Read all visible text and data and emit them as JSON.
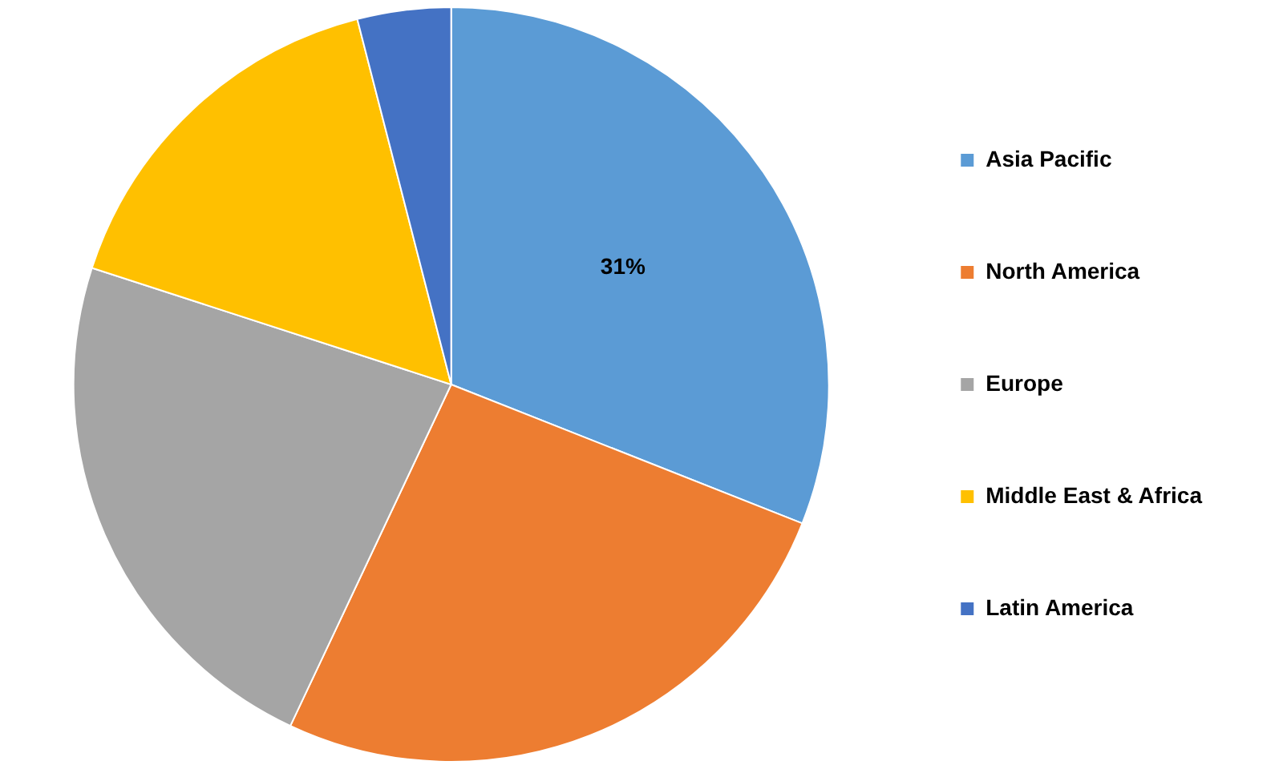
{
  "chart_data": {
    "type": "pie",
    "categories": [
      "Asia Pacific",
      "North America",
      "Europe",
      "Middle East & Africa",
      "Latin America"
    ],
    "values": [
      31,
      26,
      23,
      16,
      4
    ],
    "colors": [
      "#5b9bd5",
      "#ed7d31",
      "#a5a5a5",
      "#ffc000",
      "#4472c4"
    ],
    "value_labels": [
      "31%",
      null,
      null,
      null,
      null
    ],
    "legend": "right"
  }
}
